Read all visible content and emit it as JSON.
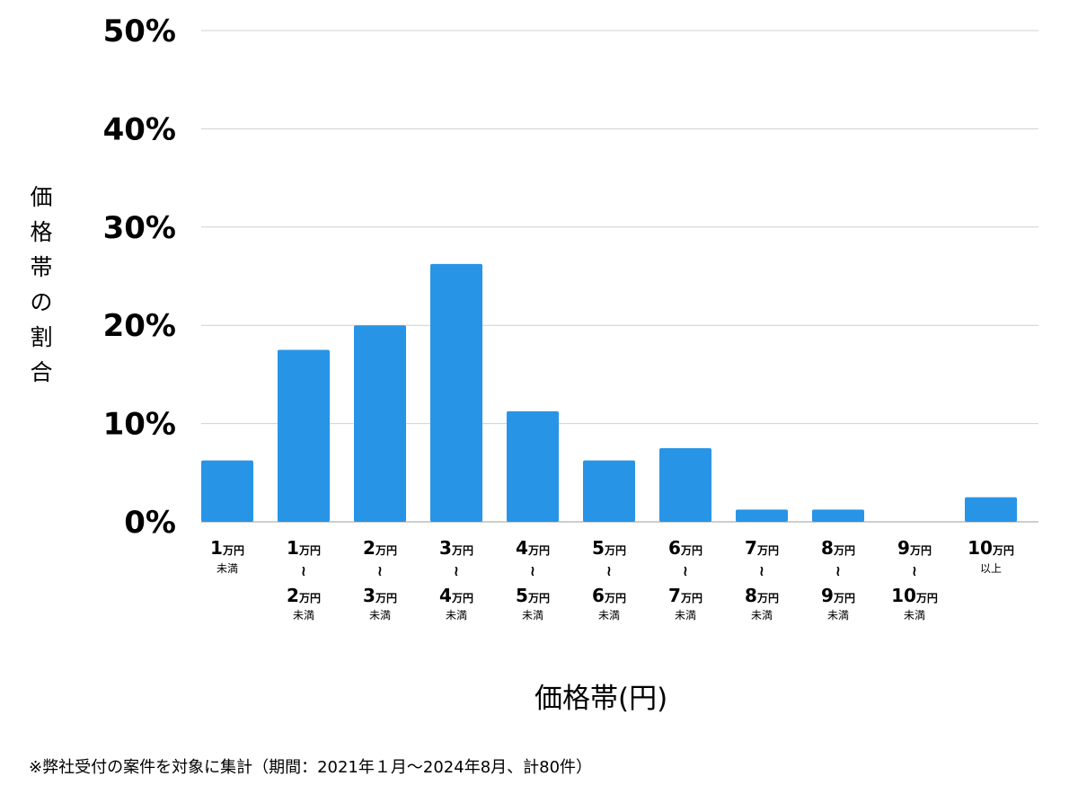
{
  "chart_data": {
    "type": "bar",
    "ylabel": "価格帯の割合",
    "xlabel": "価格帯(円)",
    "ylim": [
      0,
      50
    ],
    "yticks": [
      0,
      10,
      20,
      30,
      40,
      50
    ],
    "ytick_labels": [
      "0%",
      "10%",
      "20%",
      "30%",
      "40%",
      "50%"
    ],
    "grid": true,
    "bar_color": "#2894e6",
    "categories": [
      {
        "lines": [
          {
            "num": "1",
            "unit": "万円"
          }
        ],
        "sub": "未満"
      },
      {
        "lines": [
          {
            "num": "1",
            "unit": "万円"
          },
          {
            "num": "2",
            "unit": "万円"
          }
        ],
        "sub": "未満"
      },
      {
        "lines": [
          {
            "num": "2",
            "unit": "万円"
          },
          {
            "num": "3",
            "unit": "万円"
          }
        ],
        "sub": "未満"
      },
      {
        "lines": [
          {
            "num": "3",
            "unit": "万円"
          },
          {
            "num": "4",
            "unit": "万円"
          }
        ],
        "sub": "未満"
      },
      {
        "lines": [
          {
            "num": "4",
            "unit": "万円"
          },
          {
            "num": "5",
            "unit": "万円"
          }
        ],
        "sub": "未満"
      },
      {
        "lines": [
          {
            "num": "5",
            "unit": "万円"
          },
          {
            "num": "6",
            "unit": "万円"
          }
        ],
        "sub": "未満"
      },
      {
        "lines": [
          {
            "num": "6",
            "unit": "万円"
          },
          {
            "num": "7",
            "unit": "万円"
          }
        ],
        "sub": "未満"
      },
      {
        "lines": [
          {
            "num": "7",
            "unit": "万円"
          },
          {
            "num": "8",
            "unit": "万円"
          }
        ],
        "sub": "未満"
      },
      {
        "lines": [
          {
            "num": "8",
            "unit": "万円"
          },
          {
            "num": "9",
            "unit": "万円"
          }
        ],
        "sub": "未満"
      },
      {
        "lines": [
          {
            "num": "9",
            "unit": "万円"
          },
          {
            "num": "10",
            "unit": "万円"
          }
        ],
        "sub": "未満"
      },
      {
        "lines": [
          {
            "num": "10",
            "unit": "万円"
          }
        ],
        "sub": "以上"
      }
    ],
    "range_mark": "~",
    "values": [
      6.25,
      17.5,
      20.0,
      26.25,
      11.25,
      6.25,
      7.5,
      1.25,
      1.25,
      0,
      2.5
    ]
  },
  "footnote": "※弊社受付の案件を対象に集計（期間：2021年１月〜2024年8月、計80件）"
}
